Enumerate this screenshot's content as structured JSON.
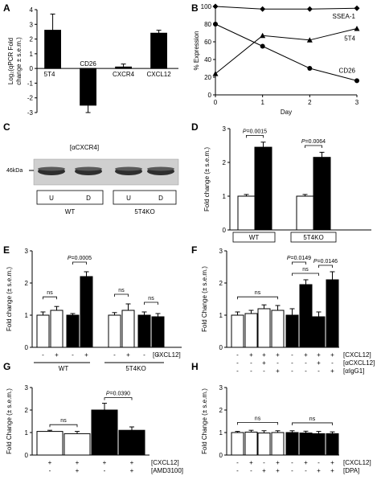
{
  "chart_data": [
    {
      "panel": "A",
      "type": "bar",
      "ylabel": "Log2(qPCR Fold change ± s.e.m.)",
      "ylim": [
        -3,
        4
      ],
      "yticks": [
        -3,
        -2,
        -1,
        0,
        1,
        2,
        3,
        4
      ],
      "categories": [
        "5T4",
        "CD26",
        "CXCR4",
        "CXCL12"
      ],
      "values": [
        2.6,
        -2.5,
        0.1,
        2.4
      ],
      "errors": [
        1.1,
        0.5,
        0.2,
        0.2
      ]
    },
    {
      "panel": "B",
      "type": "line",
      "xlabel": "Day",
      "ylabel": "% Expression",
      "xlim": [
        0,
        3
      ],
      "ylim": [
        0,
        100
      ],
      "xticks": [
        0,
        1,
        2,
        3
      ],
      "yticks": [
        0,
        20,
        40,
        60,
        80,
        100
      ],
      "series": [
        {
          "name": "SSEA-1",
          "marker": "diamond",
          "x": [
            0,
            1,
            2,
            3
          ],
          "y": [
            100,
            97,
            97,
            98
          ]
        },
        {
          "name": "5T4",
          "marker": "triangle",
          "x": [
            0,
            1,
            2,
            3
          ],
          "y": [
            24,
            67,
            62,
            75
          ]
        },
        {
          "name": "CD26",
          "marker": "circle",
          "x": [
            0,
            1,
            2,
            3
          ],
          "y": [
            80,
            55,
            30,
            16
          ]
        }
      ]
    },
    {
      "panel": "C",
      "type": "blot",
      "antibody": "[αCXCR4]",
      "size_marker": "46kDa",
      "lanes": [
        "U",
        "D",
        "U",
        "D"
      ],
      "groups": [
        "WT",
        "5T4KO"
      ]
    },
    {
      "panel": "D",
      "type": "bar",
      "ylabel": "Fold change (± s.e.m.)",
      "ylim": [
        0,
        3
      ],
      "yticks": [
        0,
        1,
        2,
        3
      ],
      "groups": [
        "WT",
        "5T4KO"
      ],
      "values": [
        1.0,
        2.45,
        1.0,
        2.15
      ],
      "errors": [
        0.05,
        0.15,
        0.05,
        0.15
      ],
      "fills": [
        "white",
        "black",
        "white",
        "black"
      ],
      "pvalues": [
        {
          "text": "P=0.0015",
          "bars": [
            0,
            1
          ]
        },
        {
          "text": "P=0.0064",
          "bars": [
            2,
            3
          ]
        }
      ]
    },
    {
      "panel": "E",
      "type": "bar",
      "ylabel": "Fold change (± s.e.m.)",
      "ylim": [
        0,
        3
      ],
      "yticks": [
        0,
        1,
        2,
        3
      ],
      "values": [
        1.0,
        1.15,
        1.0,
        2.2,
        1.0,
        1.15,
        1.0,
        0.95
      ],
      "errors": [
        0.1,
        0.12,
        0.05,
        0.15,
        0.08,
        0.2,
        0.1,
        0.1
      ],
      "fills": [
        "white",
        "white",
        "black",
        "black",
        "white",
        "white",
        "black",
        "black"
      ],
      "row_labels": [
        "[CXCL12]"
      ],
      "treatment_signs": [
        [
          "-",
          "+",
          "-",
          "+",
          "-",
          "+",
          "-",
          "+"
        ]
      ],
      "groups": [
        "WT",
        "5T4KO"
      ],
      "significance": [
        {
          "text": "ns",
          "bars": [
            0,
            1
          ]
        },
        {
          "text": "P=0.0005",
          "bars": [
            2,
            3
          ]
        },
        {
          "text": "ns",
          "bars": [
            4,
            5
          ]
        },
        {
          "text": "ns",
          "bars": [
            6,
            7
          ]
        }
      ]
    },
    {
      "panel": "F",
      "type": "bar",
      "ylabel": "Fold Change (± s.e.m.)",
      "ylim": [
        0,
        3
      ],
      "yticks": [
        0,
        1,
        2,
        3
      ],
      "values": [
        1.0,
        1.05,
        1.2,
        1.15,
        1.0,
        1.95,
        0.95,
        2.1
      ],
      "errors": [
        0.1,
        0.1,
        0.12,
        0.15,
        0.2,
        0.15,
        0.15,
        0.25
      ],
      "fills": [
        "white",
        "white",
        "white",
        "white",
        "black",
        "black",
        "black",
        "black"
      ],
      "row_labels": [
        "[CXCL12]",
        "[αCXCL12]",
        "[αIgG1]"
      ],
      "treatment_signs": [
        [
          "-",
          "+",
          "+",
          "+",
          "-",
          "+",
          "+",
          "+"
        ],
        [
          "-",
          "-",
          "+",
          "-",
          "-",
          "-",
          "+",
          "-"
        ],
        [
          "-",
          "-",
          "-",
          "+",
          "-",
          "-",
          "-",
          "+"
        ]
      ],
      "significance": [
        {
          "text": "ns",
          "bars": [
            0,
            3
          ]
        },
        {
          "text": "ns",
          "bars": [
            4,
            6
          ]
        },
        {
          "text": "P=0.0149",
          "bars": [
            4,
            5
          ]
        },
        {
          "text": "P=0.0146",
          "bars": [
            6,
            7
          ]
        }
      ]
    },
    {
      "panel": "G",
      "type": "bar",
      "ylabel": "Fold Change (± s.e.m.)",
      "ylim": [
        0,
        3
      ],
      "yticks": [
        0,
        1,
        2,
        3
      ],
      "values": [
        1.05,
        0.95,
        2.0,
        1.1
      ],
      "errors": [
        0.05,
        0.1,
        0.3,
        0.15
      ],
      "fills": [
        "white",
        "white",
        "black",
        "black"
      ],
      "row_labels": [
        "[CXCL12]",
        "[AMD3100]"
      ],
      "treatment_signs": [
        [
          "+",
          "+",
          "+",
          "+"
        ],
        [
          "-",
          "+",
          "-",
          "+"
        ]
      ],
      "significance": [
        {
          "text": "ns",
          "bars": [
            0,
            1
          ]
        },
        {
          "text": "P=0.0390",
          "bars": [
            2,
            3
          ]
        }
      ]
    },
    {
      "panel": "H",
      "type": "bar",
      "ylabel": "Fold Change (± s.e.m.)",
      "ylim": [
        0,
        3
      ],
      "yticks": [
        0,
        1,
        2,
        3
      ],
      "values": [
        1.0,
        1.02,
        0.98,
        1.0,
        1.0,
        0.98,
        0.95,
        0.95
      ],
      "errors": [
        0.05,
        0.08,
        0.1,
        0.08,
        0.08,
        0.08,
        0.1,
        0.08
      ],
      "fills": [
        "white",
        "white",
        "white",
        "white",
        "black",
        "black",
        "black",
        "black"
      ],
      "row_labels": [
        "[CXCL12]",
        "[DPA]"
      ],
      "treatment_signs": [
        [
          "-",
          "+",
          "-",
          "+",
          "-",
          "+",
          "-",
          "+"
        ],
        [
          "-",
          "-",
          "+",
          "+",
          "-",
          "-",
          "+",
          "+"
        ]
      ],
      "significance": [
        {
          "text": "ns",
          "bars": [
            0,
            3
          ]
        },
        {
          "text": "ns",
          "bars": [
            4,
            7
          ]
        }
      ]
    }
  ]
}
